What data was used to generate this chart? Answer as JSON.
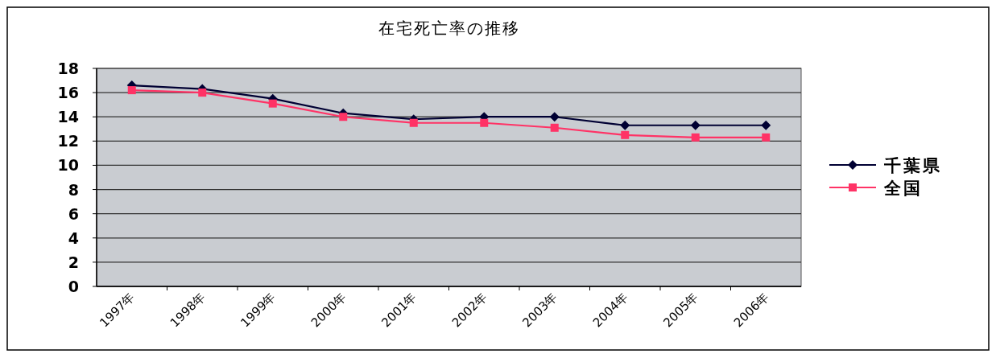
{
  "chart_data": {
    "type": "line",
    "title": "在宅死亡率の推移",
    "categories": [
      "1997年",
      "1998年",
      "1999年",
      "2000年",
      "2001年",
      "2002年",
      "2003年",
      "2004年",
      "2005年",
      "2006年"
    ],
    "series": [
      {
        "name": "千葉県",
        "color": "#000033",
        "marker": "diamond",
        "values": [
          16.6,
          16.3,
          15.5,
          14.3,
          13.8,
          14.0,
          14.0,
          13.3,
          13.3,
          13.3
        ]
      },
      {
        "name": "全国",
        "color": "#ff3366",
        "marker": "square",
        "values": [
          16.2,
          16.0,
          15.1,
          14.0,
          13.5,
          13.5,
          13.1,
          12.5,
          12.3,
          12.3
        ]
      }
    ],
    "ylim": [
      0,
      18
    ],
    "yticks": [
      0,
      2,
      4,
      6,
      8,
      10,
      12,
      14,
      16,
      18
    ],
    "grid": "y",
    "legend": "right"
  }
}
